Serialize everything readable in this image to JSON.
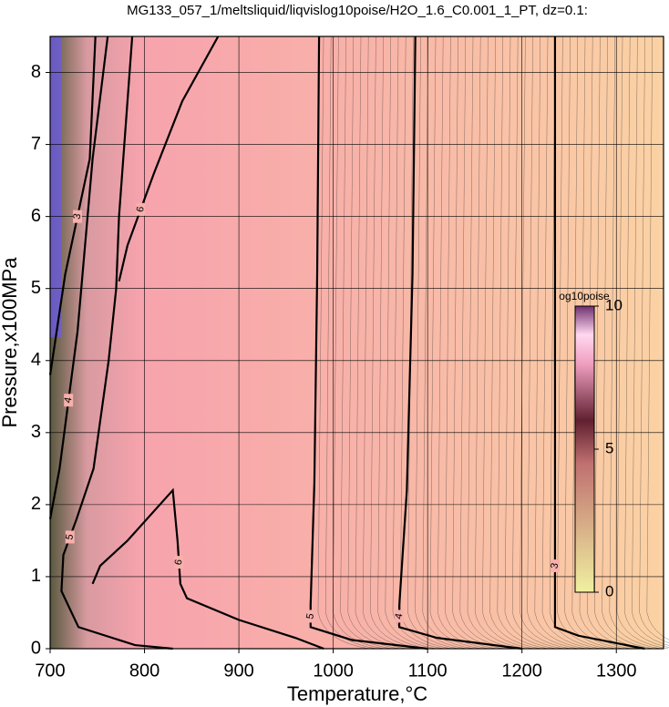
{
  "chart_data": {
    "type": "contour",
    "title": "MG133_057_1/meltsliquid/liqvislog10poise/H2O_1.6_C0.001_1_PT, dz=0.1:",
    "x_label": "Temperature,°C",
    "y_label": "Pressure,x100MPa",
    "xlim": [
      700,
      1350
    ],
    "ylim": [
      0,
      8.5
    ],
    "xticks": [
      700,
      800,
      900,
      1000,
      1100,
      1200,
      1300
    ],
    "yticks": [
      0,
      1,
      2,
      3,
      4,
      5,
      6,
      7,
      8
    ],
    "grid": true,
    "contours": [
      {
        "level": 3,
        "x": [
          1235,
          1235,
          1235,
          1235,
          1260,
          1330
        ],
        "y": [
          8.5,
          5.2,
          2.0,
          0.3,
          0.18,
          0
        ]
      },
      {
        "level": 4,
        "x": [
          1087,
          1084,
          1078,
          1070,
          1070,
          1110,
          1200
        ],
        "y": [
          8.5,
          5.2,
          2.2,
          0.6,
          0.3,
          0.15,
          0
        ]
      },
      {
        "level": 5,
        "x": [
          985,
          983,
          980,
          976,
          976,
          1020,
          1100
        ],
        "y": [
          8.5,
          5.2,
          2.3,
          0.6,
          0.3,
          0.12,
          0
        ]
      },
      {
        "level": 5,
        "x": [
          787,
          773,
          770,
          762,
          746,
          728,
          714,
          712,
          730,
          790,
          830
        ],
        "y": [
          8.5,
          6.0,
          5.0,
          4.0,
          2.5,
          1.8,
          1.3,
          0.8,
          0.3,
          0.05,
          0
        ]
      },
      {
        "level": 6,
        "x": [
          878,
          840,
          810,
          782,
          773
        ],
        "y": [
          8.5,
          7.6,
          6.6,
          5.6,
          5.1
        ]
      },
      {
        "level": 6,
        "x": [
          745,
          753,
          782,
          830,
          835,
          838,
          845,
          900,
          960,
          990
        ],
        "y": [
          0.9,
          1.15,
          1.5,
          2.2,
          1.5,
          0.9,
          0.7,
          0.4,
          0.15,
          0
        ]
      },
      {
        "level": 4,
        "x": [
          761,
          745,
          729,
          710,
          700
        ],
        "y": [
          8.5,
          6.8,
          4.4,
          2.5,
          1.8
        ]
      },
      {
        "level": 3,
        "x": [
          748,
          742,
          716,
          700
        ],
        "y": [
          8.5,
          6.8,
          5.2,
          3.8
        ]
      }
    ],
    "colorbar": {
      "label": "og10poise",
      "lim": [
        0,
        10
      ],
      "ticks": [
        0,
        5,
        10
      ]
    }
  }
}
